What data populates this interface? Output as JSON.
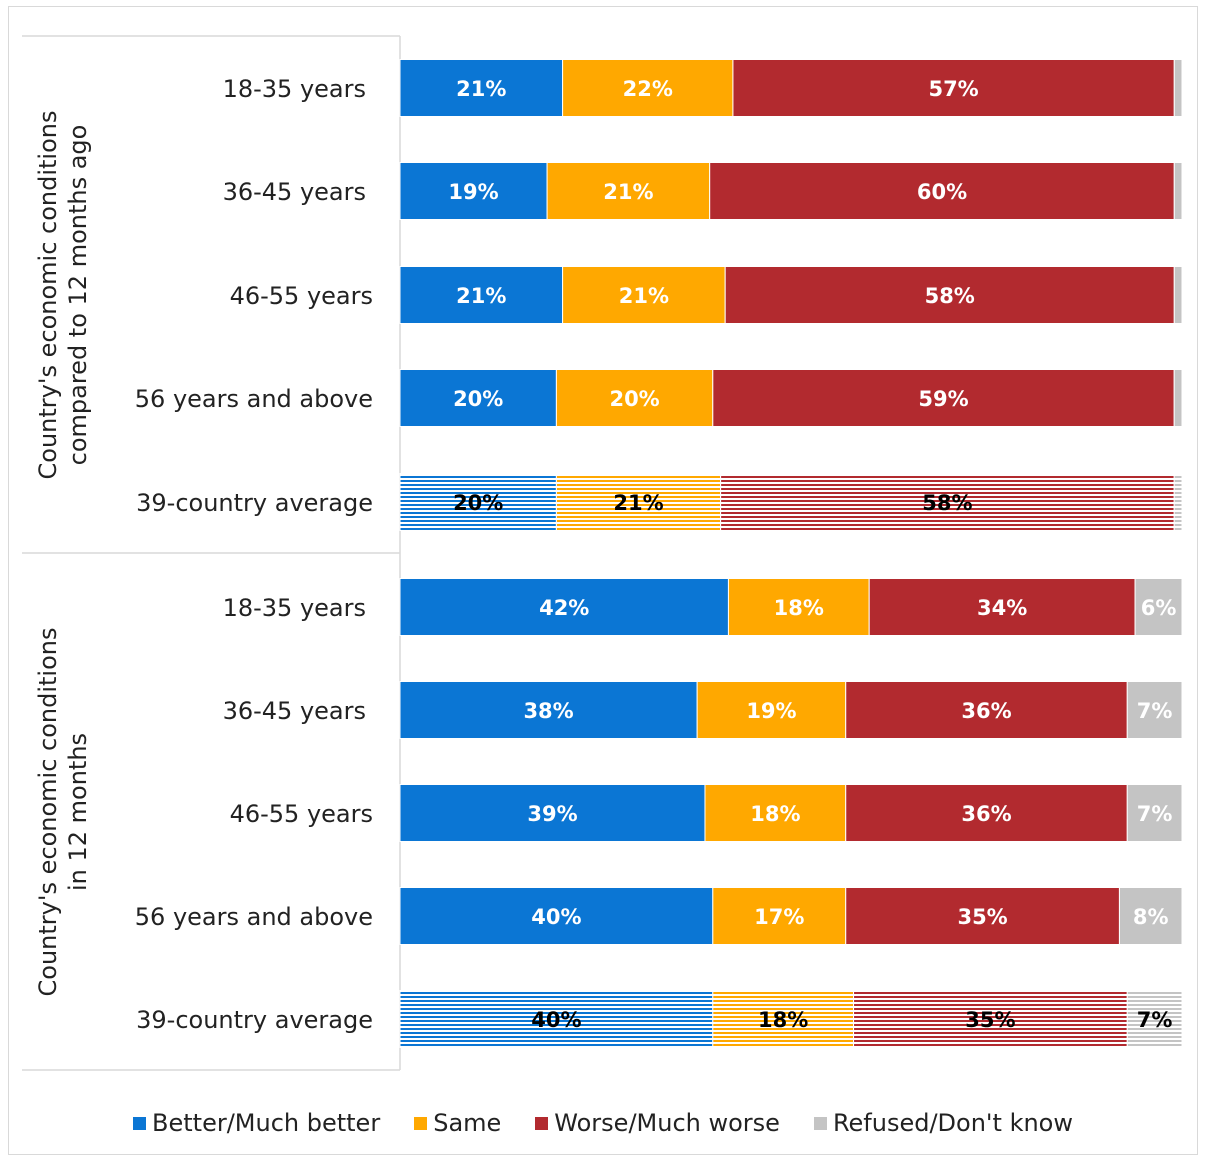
{
  "chart_data": {
    "type": "bar",
    "orientation": "horizontal",
    "stacked": true,
    "percent": true,
    "groups": [
      {
        "label_lines": [
          "Country's economic conditions",
          "compared to 12 months ago"
        ],
        "categories": [
          "18-35 years",
          "36-45 years",
          "46-55 years",
          "56 years and above",
          "39-country average"
        ]
      },
      {
        "label_lines": [
          "Country's economic conditions",
          "in 12 months"
        ],
        "categories": [
          "18-35 years",
          "36-45 years",
          "46-55 years",
          "56 years and above",
          "39-country average"
        ]
      }
    ],
    "series": [
      {
        "name": "Better/Much better",
        "color": "#0b76d4",
        "values": [
          21,
          19,
          21,
          20,
          20,
          42,
          38,
          39,
          40,
          40
        ]
      },
      {
        "name": "Same",
        "color": "#ffa800",
        "values": [
          22,
          21,
          21,
          20,
          21,
          18,
          19,
          18,
          17,
          18
        ]
      },
      {
        "name": "Worse/Much worse",
        "color": "#b22a2f",
        "values": [
          57,
          60,
          58,
          59,
          58,
          34,
          36,
          36,
          35,
          35
        ]
      },
      {
        "name": "Refused/Don't know",
        "color": "#c4c4c4",
        "values": [
          1,
          1,
          1,
          1,
          1,
          6,
          7,
          7,
          8,
          7
        ]
      }
    ],
    "labels": [
      [
        "21%",
        "22%",
        "57%",
        ""
      ],
      [
        "19%",
        "21%",
        "60%",
        ""
      ],
      [
        "21%",
        "21%",
        "58%",
        ""
      ],
      [
        "20%",
        "20%",
        "59%",
        ""
      ],
      [
        "20%",
        "21%",
        "58%",
        ""
      ],
      [
        "42%",
        "18%",
        "34%",
        "6%"
      ],
      [
        "38%",
        "19%",
        "36%",
        "7%"
      ],
      [
        "39%",
        "18%",
        "36%",
        "7%"
      ],
      [
        "40%",
        "17%",
        "35%",
        "8%"
      ],
      [
        "40%",
        "18%",
        "35%",
        "7%"
      ]
    ],
    "highlighted_rows": [
      4,
      9
    ],
    "xlim": [
      0,
      100
    ],
    "legend_position": "bottom",
    "grid": false
  }
}
